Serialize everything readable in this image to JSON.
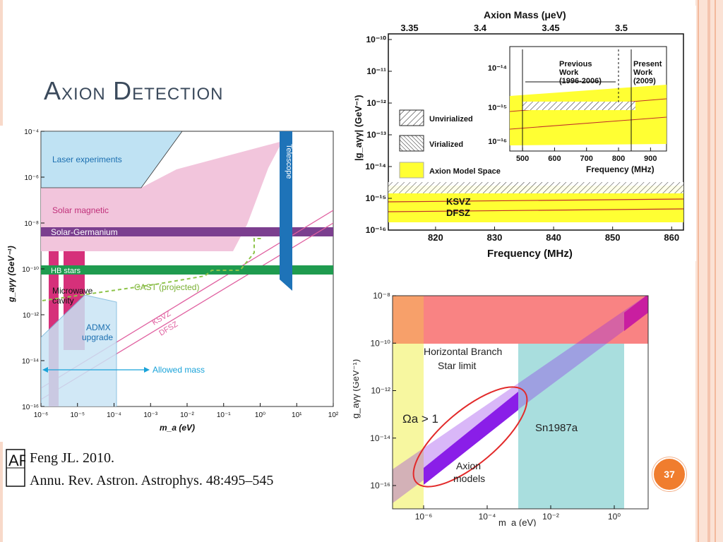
{
  "slide": {
    "title": "Axion Detection",
    "page_number": "37",
    "citation": {
      "logo_text": "AR",
      "line1": "Feng JL. 2010.",
      "line2": "Annu. Rev. Astron. Astrophys. 48:495–545"
    },
    "colors": {
      "accent_stripe": "#f4c4ae",
      "page_badge": "#f07d2e"
    }
  },
  "chart_data": [
    {
      "type": "area",
      "xlabel": "m_a (eV)",
      "ylabel": "g_aγγ (GeV⁻¹)",
      "x_scale": "log",
      "y_scale": "log",
      "xlim": [
        1e-06,
        100
      ],
      "ylim": [
        1e-16,
        0.0001
      ],
      "x_ticks": [
        "10⁻⁶",
        "10⁻⁵",
        "10⁻⁴",
        "10⁻³",
        "10⁻²",
        "10⁻¹",
        "10⁰",
        "10¹",
        "10²"
      ],
      "y_ticks": [
        "10⁻⁴",
        "10⁻⁶",
        "10⁻⁸",
        "10⁻¹⁰",
        "10⁻¹²",
        "10⁻¹⁴",
        "10⁻¹⁶"
      ],
      "regions": [
        {
          "name": "Laser experiments",
          "color": "#bfe2f3"
        },
        {
          "name": "Solar magnetic",
          "color": "#f2c5dc"
        },
        {
          "name": "Solar-Germanium",
          "color": "#7b3f8f",
          "y": 2e-09
        },
        {
          "name": "HB stars",
          "color": "#1f9b4f",
          "y": 1e-10
        },
        {
          "name": "Telescope",
          "color": "#1e73b8",
          "x_range": [
            3,
            8
          ]
        },
        {
          "name": "Microwave cavity",
          "color": "#d6307a"
        },
        {
          "name": "ADMX upgrade",
          "color": "#c9e4f5"
        }
      ],
      "lines": [
        {
          "name": "KSVZ",
          "color": "#e060a0"
        },
        {
          "name": "DFSZ",
          "color": "#e060a0"
        },
        {
          "name": "CAST (projected)",
          "color": "#8ec44a",
          "style": "dashed"
        }
      ],
      "annotations": [
        {
          "text": "Allowed mass",
          "color": "#1aa3d9",
          "x_range": [
            1e-06,
            0.001
          ],
          "y": 4e-15
        }
      ]
    },
    {
      "type": "area",
      "xlabel": "Frequency (MHz)",
      "x2label": "Axion Mass (μeV)",
      "ylabel": "|g_aγγ| (GeV⁻¹)",
      "x_scale": "linear",
      "y_scale": "log",
      "xlim": [
        812,
        862
      ],
      "ylim": [
        1e-16,
        1e-10
      ],
      "x_ticks": [
        "820",
        "830",
        "840",
        "850",
        "860"
      ],
      "x2_ticks": [
        "3.35",
        "3.4",
        "3.45",
        "3.5"
      ],
      "y_ticks": [
        "10⁻¹⁰",
        "10⁻¹¹",
        "10⁻¹²",
        "10⁻¹³",
        "10⁻¹⁴",
        "10⁻¹⁵",
        "10⁻¹⁶"
      ],
      "legend": [
        {
          "name": "Unvirialized",
          "pattern": "hatch"
        },
        {
          "name": "Virialized",
          "pattern": "hatch-dense"
        },
        {
          "name": "Axion Model Space",
          "color": "#ffff33"
        }
      ],
      "lines": [
        {
          "name": "KSVZ",
          "y": 1.6e-15,
          "color": "#c0302a"
        },
        {
          "name": "DFSZ",
          "y": 6e-16,
          "color": "#c0302a"
        }
      ],
      "limit_level": 2.6e-15,
      "inset": {
        "xlabel": "Frequency (MHz)",
        "x_ticks": [
          "500",
          "600",
          "700",
          "800",
          "900"
        ],
        "xlim": [
          460,
          950
        ],
        "y_ticks": [
          "10⁻¹⁴",
          "10⁻¹⁵",
          "10⁻¹⁶"
        ],
        "labels": [
          {
            "text": "Previous\nWork\n(1996-2006)"
          },
          {
            "text": "Present\nWork\n(2009)"
          }
        ],
        "divider_x": 812
      }
    },
    {
      "type": "area",
      "xlabel": "m_a (eV)",
      "ylabel": "g_aγγ (GeV⁻¹)",
      "x_scale": "log",
      "y_scale": "log",
      "xlim": [
        1e-07,
        10
      ],
      "ylim": [
        1e-17,
        1e-08
      ],
      "x_ticks": [
        "10⁻⁶",
        "10⁻⁴",
        "10⁻²",
        "10⁰"
      ],
      "y_ticks": [
        "10⁻⁸",
        "10⁻¹⁰",
        "10⁻¹²",
        "10⁻¹⁴",
        "10⁻¹⁶"
      ],
      "regions": [
        {
          "name": "Horizontal Branch\nStar limit",
          "color": "#f98383"
        },
        {
          "name": "Sn1987a",
          "color": "#a9dede"
        },
        {
          "name": "Ωa > 1",
          "color": "#f7f7a0"
        },
        {
          "name": "Axion\nmodels",
          "color": "#8a1ee8"
        }
      ]
    }
  ]
}
